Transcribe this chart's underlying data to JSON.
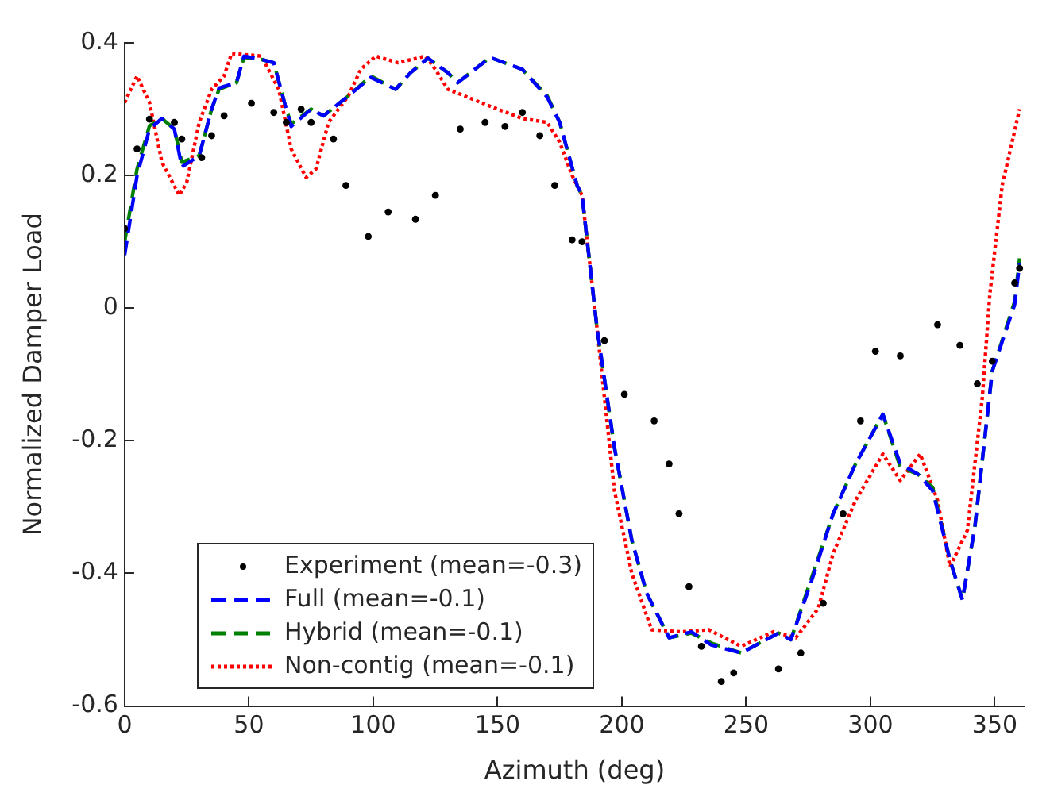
{
  "chart_data": {
    "type": "line",
    "xlabel": "Azimuth (deg)",
    "ylabel": "Normalized Damper Load",
    "xlim": [
      0,
      362
    ],
    "xticks": [
      0,
      50,
      100,
      150,
      200,
      250,
      300,
      350
    ],
    "ylim": [
      -0.6,
      0.4
    ],
    "yticks": [
      -0.6,
      -0.4,
      -0.2,
      0,
      0.2,
      0.4
    ],
    "grid": false,
    "legend": "bottom left",
    "series": [
      {
        "name": "Experiment (mean=-0.3)",
        "type": "scatter",
        "marker": "circle",
        "color": "#000000",
        "x": [
          0,
          5,
          10,
          20,
          23,
          31,
          35,
          40,
          51,
          60,
          65,
          71,
          75,
          84,
          89,
          98,
          106,
          117,
          125,
          135,
          145,
          153,
          160,
          167,
          173,
          180,
          184,
          193,
          201,
          213,
          219,
          223,
          227,
          232,
          240,
          245,
          263,
          272,
          281,
          289,
          296,
          302,
          312,
          327,
          336,
          343,
          349,
          358,
          360
        ],
        "values": [
          0.12,
          0.24,
          0.285,
          0.28,
          0.255,
          0.227,
          0.26,
          0.29,
          0.309,
          0.295,
          0.28,
          0.3,
          0.28,
          0.255,
          0.185,
          0.108,
          0.145,
          0.134,
          0.17,
          0.27,
          0.28,
          0.274,
          0.295,
          0.26,
          0.185,
          0.103,
          0.1,
          -0.049,
          -0.13,
          -0.17,
          -0.235,
          -0.31,
          -0.42,
          -0.51,
          -0.563,
          -0.55,
          -0.544,
          -0.52,
          -0.445,
          -0.31,
          -0.17,
          -0.065,
          -0.072,
          -0.025,
          -0.056,
          -0.114,
          -0.08,
          0.038,
          0.06
        ]
      },
      {
        "name": "Full (mean=-0.1)",
        "type": "line",
        "marker": "none",
        "line_style": "dashed",
        "color": "#0000ff",
        "x": [
          0,
          5,
          10,
          15,
          20,
          23,
          30,
          35,
          38,
          45,
          48,
          55,
          60,
          65,
          67,
          75,
          80,
          90,
          99,
          109,
          115,
          122,
          130,
          134,
          147,
          160,
          170,
          175,
          182,
          184,
          190,
          197,
          204,
          210,
          219,
          228,
          236,
          248,
          263,
          268,
          276,
          285,
          294,
          305,
          312,
          319,
          325,
          332,
          337,
          342,
          349,
          358,
          360
        ],
        "values": [
          0.08,
          0.2,
          0.27,
          0.286,
          0.27,
          0.213,
          0.23,
          0.3,
          0.332,
          0.34,
          0.38,
          0.375,
          0.37,
          0.3,
          0.274,
          0.3,
          0.29,
          0.32,
          0.348,
          0.33,
          0.355,
          0.377,
          0.355,
          0.34,
          0.378,
          0.36,
          0.318,
          0.28,
          0.185,
          0.17,
          -0.03,
          -0.21,
          -0.35,
          -0.43,
          -0.497,
          -0.488,
          -0.508,
          -0.52,
          -0.49,
          -0.5,
          -0.415,
          -0.31,
          -0.235,
          -0.16,
          -0.235,
          -0.25,
          -0.275,
          -0.38,
          -0.44,
          -0.33,
          -0.095,
          0.005,
          0.068
        ]
      },
      {
        "name": "Hybrid (mean=-0.1)",
        "type": "line",
        "marker": "none",
        "line_style": "dashed",
        "color": "#008000",
        "x": [
          0,
          5,
          10,
          15,
          20,
          23,
          30,
          35,
          38,
          45,
          48,
          55,
          60,
          65,
          67,
          75,
          80,
          90,
          99,
          109,
          115,
          122,
          130,
          134,
          147,
          160,
          170,
          175,
          182,
          184,
          190,
          197,
          204,
          210,
          219,
          228,
          236,
          248,
          263,
          268,
          276,
          285,
          294,
          305,
          312,
          319,
          325,
          332,
          337,
          342,
          349,
          358,
          360
        ],
        "values": [
          0.1,
          0.21,
          0.275,
          0.286,
          0.27,
          0.22,
          0.23,
          0.3,
          0.33,
          0.34,
          0.378,
          0.375,
          0.37,
          0.3,
          0.278,
          0.3,
          0.29,
          0.32,
          0.35,
          0.33,
          0.355,
          0.377,
          0.355,
          0.34,
          0.378,
          0.36,
          0.32,
          0.28,
          0.185,
          0.17,
          -0.03,
          -0.21,
          -0.35,
          -0.43,
          -0.497,
          -0.49,
          -0.505,
          -0.52,
          -0.49,
          -0.5,
          -0.41,
          -0.31,
          -0.235,
          -0.16,
          -0.24,
          -0.25,
          -0.27,
          -0.38,
          -0.44,
          -0.33,
          -0.095,
          0.01,
          0.075
        ]
      },
      {
        "name": "Non-contig (mean=-0.1)",
        "type": "line",
        "marker": "none",
        "line_style": "dotted",
        "color": "#ff0000",
        "x": [
          0,
          5,
          10,
          15,
          22,
          25,
          30,
          35,
          40,
          43,
          55,
          62,
          67,
          73,
          77,
          82,
          90,
          95,
          101,
          110,
          121,
          125,
          130,
          140,
          150,
          160,
          170,
          175,
          180,
          184,
          190,
          197,
          204,
          212,
          224,
          235,
          248,
          261,
          270,
          279,
          285,
          294,
          305,
          312,
          320,
          327,
          332,
          339,
          345,
          348,
          353,
          360
        ],
        "values": [
          0.31,
          0.35,
          0.31,
          0.22,
          0.17,
          0.19,
          0.28,
          0.33,
          0.35,
          0.384,
          0.38,
          0.33,
          0.24,
          0.197,
          0.21,
          0.28,
          0.32,
          0.36,
          0.38,
          0.37,
          0.38,
          0.36,
          0.33,
          0.315,
          0.3,
          0.286,
          0.28,
          0.25,
          0.2,
          0.17,
          -0.03,
          -0.275,
          -0.4,
          -0.485,
          -0.488,
          -0.485,
          -0.51,
          -0.488,
          -0.497,
          -0.453,
          -0.37,
          -0.29,
          -0.22,
          -0.26,
          -0.22,
          -0.29,
          -0.39,
          -0.335,
          -0.135,
          0.02,
          0.185,
          0.3
        ]
      }
    ]
  }
}
